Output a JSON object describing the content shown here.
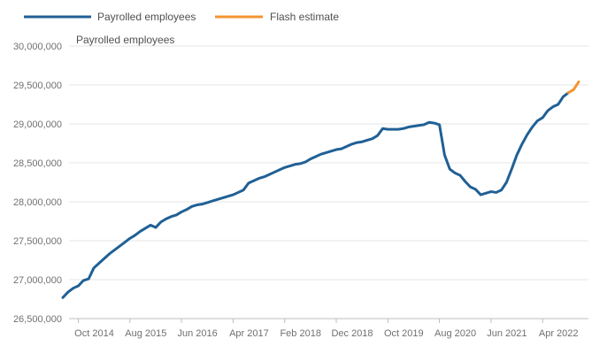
{
  "chart_data": {
    "type": "line",
    "ylabel": "Payrolled employees",
    "ylim": [
      26500000,
      30000000
    ],
    "y_ticks": [
      26500000,
      27000000,
      27500000,
      28000000,
      28500000,
      29000000,
      29500000,
      30000000
    ],
    "y_tick_labels": [
      "26,500,000",
      "27,000,000",
      "27,500,000",
      "28,000,000",
      "28,500,000",
      "29,000,000",
      "29,500,000",
      "30,000,000"
    ],
    "x_tick_labels": [
      "Oct 2014",
      "Aug 2015",
      "Jun 2016",
      "Apr 2017",
      "Feb 2018",
      "Dec 2018",
      "Oct 2019",
      "Aug 2020",
      "Jun 2021",
      "Apr 2022"
    ],
    "x_tick_index": [
      0,
      10,
      20,
      30,
      40,
      50,
      60,
      70,
      80,
      90
    ],
    "x_start": "Jul 2014",
    "x_end": "Apr 2022",
    "grid": true,
    "legend_position": "top-left",
    "series": [
      {
        "name": "Payrolled employees",
        "color": "#206095",
        "start_month_index": -3,
        "values": [
          26770000,
          26840000,
          26890000,
          26920000,
          26990000,
          27010000,
          27150000,
          27210000,
          27270000,
          27330000,
          27380000,
          27430000,
          27480000,
          27530000,
          27570000,
          27620000,
          27660000,
          27700000,
          27670000,
          27740000,
          27780000,
          27810000,
          27830000,
          27870000,
          27900000,
          27940000,
          27960000,
          27970000,
          27990000,
          28010000,
          28030000,
          28050000,
          28070000,
          28090000,
          28120000,
          28150000,
          28240000,
          28270000,
          28300000,
          28320000,
          28350000,
          28380000,
          28410000,
          28440000,
          28460000,
          28480000,
          28490000,
          28510000,
          28550000,
          28580000,
          28610000,
          28630000,
          28650000,
          28670000,
          28680000,
          28710000,
          28740000,
          28760000,
          28770000,
          28790000,
          28810000,
          28850000,
          28940000,
          28930000,
          28930000,
          28930000,
          28940000,
          28960000,
          28970000,
          28980000,
          28990000,
          29020000,
          29010000,
          28990000,
          28600000,
          28420000,
          28370000,
          28340000,
          28260000,
          28190000,
          28160000,
          28090000,
          28110000,
          28130000,
          28120000,
          28150000,
          28250000,
          28420000,
          28600000,
          28740000,
          28860000,
          28960000,
          29040000,
          29080000,
          29170000,
          29220000,
          29250000,
          29350000,
          29400000
        ]
      },
      {
        "name": "Flash estimate",
        "color": "#f39431",
        "start_month_index": 95,
        "values": [
          29400000,
          29440000,
          29540000
        ]
      }
    ]
  }
}
